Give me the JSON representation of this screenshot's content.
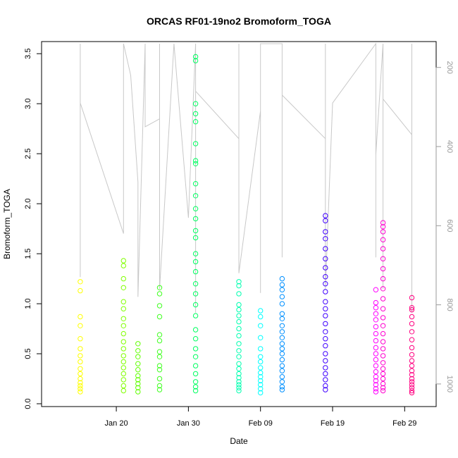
{
  "chart_data": {
    "type": "scatter",
    "title": "ORCAS RF01-19no2 Bromoform_TOGA",
    "xlabel": "Date",
    "ylabel": "Bromoform_TOGA",
    "x_ticks": [
      "Jan 20",
      "Jan 30",
      "Feb 09",
      "Feb 19",
      "Feb 29"
    ],
    "y_ticks": [
      "0.0",
      "0.5",
      "1.0",
      "1.5",
      "2.0",
      "2.5",
      "3.0",
      "3.5"
    ],
    "y2_ticks": [
      "200",
      "400",
      "600",
      "800",
      "1000"
    ],
    "xlim": [
      "2016-01-11",
      "2016-03-03"
    ],
    "ylim": [
      0,
      3.6
    ],
    "y2lim": [
      1050,
      140
    ],
    "y2_reversed": true,
    "secondary_series": {
      "name": "",
      "color": "#c8c8c8",
      "points": [
        [
          "2016-01-15",
          730
        ],
        [
          "2016-01-15",
          140
        ],
        [
          "2016-01-15",
          290
        ],
        [
          "2016-01-21",
          620
        ],
        [
          "2016-01-21",
          140
        ],
        [
          "2016-01-22",
          220
        ],
        [
          "2016-01-23",
          490
        ],
        [
          "2016-01-23",
          780
        ],
        [
          "2016-01-24",
          140
        ],
        [
          "2016-01-24",
          350
        ],
        [
          "2016-01-26",
          330
        ],
        [
          "2016-01-26",
          140
        ],
        [
          "2016-01-26",
          760
        ],
        [
          "2016-01-28",
          140
        ],
        [
          "2016-01-30",
          580
        ],
        [
          "2016-01-31",
          140
        ],
        [
          "2016-01-31",
          820
        ],
        [
          "2016-01-31",
          260
        ],
        [
          "2016-02-06",
          380
        ],
        [
          "2016-02-06",
          140
        ],
        [
          "2016-02-06",
          720
        ],
        [
          "2016-02-09",
          310
        ],
        [
          "2016-02-09",
          770
        ],
        [
          "2016-02-09",
          140
        ],
        [
          "2016-02-12",
          140
        ],
        [
          "2016-02-12",
          680
        ],
        [
          "2016-02-12",
          270
        ],
        [
          "2016-02-18",
          380
        ],
        [
          "2016-02-18",
          140
        ],
        [
          "2016-02-18",
          760
        ],
        [
          "2016-02-19",
          290
        ],
        [
          "2016-02-25",
          140
        ],
        [
          "2016-02-25",
          680
        ],
        [
          "2016-02-25",
          420
        ],
        [
          "2016-02-26",
          140
        ],
        [
          "2016-02-26",
          760
        ],
        [
          "2016-02-26",
          280
        ],
        [
          "2016-03-01",
          370
        ],
        [
          "2016-03-01",
          140
        ],
        [
          "2016-03-01",
          820
        ]
      ]
    },
    "series": [
      {
        "color": "#ffff00",
        "x": [
          "2016-01-15",
          "2016-01-15",
          "2016-01-15",
          "2016-01-15",
          "2016-01-15",
          "2016-01-15",
          "2016-01-15",
          "2016-01-15",
          "2016-01-15",
          "2016-01-15",
          "2016-01-15",
          "2016-01-15",
          "2016-01-15",
          "2016-01-15",
          "2016-01-15"
        ],
        "y": [
          1.22,
          1.13,
          0.87,
          0.78,
          0.65,
          0.55,
          0.48,
          0.42,
          0.35,
          0.3,
          0.25,
          0.21,
          0.18,
          0.15,
          0.12
        ]
      },
      {
        "color": "#80ff00",
        "x": [
          "2016-01-21",
          "2016-01-21",
          "2016-01-21",
          "2016-01-21",
          "2016-01-21",
          "2016-01-21",
          "2016-01-21",
          "2016-01-21",
          "2016-01-21",
          "2016-01-21",
          "2016-01-21",
          "2016-01-21",
          "2016-01-21",
          "2016-01-21",
          "2016-01-21",
          "2016-01-21",
          "2016-01-21",
          "2016-01-21"
        ],
        "y": [
          1.43,
          1.38,
          1.25,
          1.16,
          1.02,
          0.95,
          0.85,
          0.78,
          0.7,
          0.62,
          0.55,
          0.48,
          0.42,
          0.36,
          0.3,
          0.24,
          0.18,
          0.13
        ]
      },
      {
        "color": "#60ff00",
        "x": [
          "2016-01-23",
          "2016-01-23",
          "2016-01-23",
          "2016-01-23",
          "2016-01-23",
          "2016-01-23",
          "2016-01-23",
          "2016-01-23",
          "2016-01-23",
          "2016-01-23"
        ],
        "y": [
          0.6,
          0.53,
          0.47,
          0.4,
          0.34,
          0.28,
          0.24,
          0.2,
          0.16,
          0.12
        ]
      },
      {
        "color": "#40ff20",
        "x": [
          "2016-01-26",
          "2016-01-26",
          "2016-01-26",
          "2016-01-26",
          "2016-01-26",
          "2016-01-26",
          "2016-01-26",
          "2016-01-26",
          "2016-01-26",
          "2016-01-26",
          "2016-01-26",
          "2016-01-26",
          "2016-01-26"
        ],
        "y": [
          1.16,
          1.1,
          0.98,
          0.87,
          0.69,
          0.63,
          0.52,
          0.47,
          0.38,
          0.34,
          0.25,
          0.18,
          0.14
        ]
      },
      {
        "color": "#00ff60",
        "x": [
          "2016-01-31",
          "2016-01-31",
          "2016-01-31",
          "2016-01-31",
          "2016-01-31",
          "2016-01-31",
          "2016-01-31",
          "2016-01-31",
          "2016-01-31",
          "2016-01-31",
          "2016-01-31",
          "2016-01-31",
          "2016-01-31",
          "2016-01-31",
          "2016-01-31",
          "2016-01-31",
          "2016-01-31",
          "2016-01-31",
          "2016-01-31",
          "2016-01-31",
          "2016-01-31",
          "2016-01-31",
          "2016-01-31",
          "2016-01-31",
          "2016-01-31",
          "2016-01-31",
          "2016-01-31",
          "2016-01-31",
          "2016-01-31",
          "2016-01-31"
        ],
        "y": [
          3.47,
          3.43,
          3.0,
          2.9,
          2.82,
          2.6,
          2.43,
          2.4,
          2.2,
          2.08,
          1.95,
          1.85,
          1.73,
          1.66,
          1.5,
          1.42,
          1.32,
          1.2,
          1.1,
          0.99,
          0.88,
          0.74,
          0.65,
          0.55,
          0.47,
          0.38,
          0.3,
          0.22,
          0.17,
          0.13
        ]
      },
      {
        "color": "#00ffb0",
        "x": [
          "2016-02-06",
          "2016-02-06",
          "2016-02-06",
          "2016-02-06",
          "2016-02-06",
          "2016-02-06",
          "2016-02-06",
          "2016-02-06",
          "2016-02-06",
          "2016-02-06",
          "2016-02-06",
          "2016-02-06",
          "2016-02-06",
          "2016-02-06",
          "2016-02-06",
          "2016-02-06",
          "2016-02-06",
          "2016-02-06",
          "2016-02-06",
          "2016-02-06"
        ],
        "y": [
          1.22,
          1.18,
          1.1,
          0.99,
          0.94,
          0.88,
          0.82,
          0.75,
          0.68,
          0.6,
          0.53,
          0.47,
          0.4,
          0.35,
          0.3,
          0.26,
          0.22,
          0.19,
          0.16,
          0.13
        ]
      },
      {
        "color": "#00ffff",
        "x": [
          "2016-02-09",
          "2016-02-09",
          "2016-02-09",
          "2016-02-09",
          "2016-02-09",
          "2016-02-09",
          "2016-02-09",
          "2016-02-09",
          "2016-02-09",
          "2016-02-09",
          "2016-02-09",
          "2016-02-09",
          "2016-02-09",
          "2016-02-09"
        ],
        "y": [
          0.93,
          0.87,
          0.78,
          0.66,
          0.55,
          0.47,
          0.42,
          0.36,
          0.31,
          0.27,
          0.23,
          0.19,
          0.15,
          0.11
        ]
      },
      {
        "color": "#0090ff",
        "x": [
          "2016-02-12",
          "2016-02-12",
          "2016-02-12",
          "2016-02-12",
          "2016-02-12",
          "2016-02-12",
          "2016-02-12",
          "2016-02-12",
          "2016-02-12",
          "2016-02-12",
          "2016-02-12",
          "2016-02-12",
          "2016-02-12",
          "2016-02-12",
          "2016-02-12",
          "2016-02-12",
          "2016-02-12",
          "2016-02-12",
          "2016-02-12",
          "2016-02-12"
        ],
        "y": [
          1.25,
          1.19,
          1.14,
          1.07,
          1.0,
          0.9,
          0.85,
          0.78,
          0.72,
          0.66,
          0.6,
          0.55,
          0.5,
          0.44,
          0.38,
          0.33,
          0.27,
          0.22,
          0.17,
          0.14
        ]
      },
      {
        "color": "#4000ff",
        "x": [
          "2016-02-18",
          "2016-02-18",
          "2016-02-18",
          "2016-02-18",
          "2016-02-18",
          "2016-02-18",
          "2016-02-18",
          "2016-02-18",
          "2016-02-18",
          "2016-02-18",
          "2016-02-18",
          "2016-02-18",
          "2016-02-18",
          "2016-02-18",
          "2016-02-18",
          "2016-02-18",
          "2016-02-18",
          "2016-02-18",
          "2016-02-18",
          "2016-02-18",
          "2016-02-18",
          "2016-02-18",
          "2016-02-18",
          "2016-02-18"
        ],
        "y": [
          1.88,
          1.83,
          1.72,
          1.65,
          1.55,
          1.45,
          1.36,
          1.27,
          1.2,
          1.12,
          1.02,
          0.95,
          0.88,
          0.8,
          0.72,
          0.65,
          0.58,
          0.5,
          0.43,
          0.36,
          0.3,
          0.24,
          0.18,
          0.14
        ]
      },
      {
        "color": "#ff00ff",
        "x": [
          "2016-02-25",
          "2016-02-25",
          "2016-02-25",
          "2016-02-25",
          "2016-02-25",
          "2016-02-25",
          "2016-02-25",
          "2016-02-25",
          "2016-02-25",
          "2016-02-25",
          "2016-02-25",
          "2016-02-25",
          "2016-02-25",
          "2016-02-25",
          "2016-02-25",
          "2016-02-25",
          "2016-02-25",
          "2016-02-25"
        ],
        "y": [
          1.14,
          1.01,
          0.96,
          0.9,
          0.84,
          0.77,
          0.7,
          0.63,
          0.56,
          0.5,
          0.44,
          0.38,
          0.32,
          0.27,
          0.23,
          0.19,
          0.15,
          0.12
        ]
      },
      {
        "color": "#ff00d0",
        "x": [
          "2016-02-26",
          "2016-02-26",
          "2016-02-26",
          "2016-02-26",
          "2016-02-26",
          "2016-02-26",
          "2016-02-26",
          "2016-02-26",
          "2016-02-26",
          "2016-02-26",
          "2016-02-26",
          "2016-02-26",
          "2016-02-26",
          "2016-02-26",
          "2016-02-26",
          "2016-02-26",
          "2016-02-26",
          "2016-02-26",
          "2016-02-26",
          "2016-02-26",
          "2016-02-26",
          "2016-02-26",
          "2016-02-26",
          "2016-02-26"
        ],
        "y": [
          1.81,
          1.77,
          1.72,
          1.64,
          1.55,
          1.45,
          1.35,
          1.25,
          1.15,
          1.05,
          0.95,
          0.86,
          0.78,
          0.7,
          0.62,
          0.55,
          0.48,
          0.41,
          0.35,
          0.3,
          0.25,
          0.2,
          0.16,
          0.13
        ]
      },
      {
        "color": "#ff0080",
        "x": [
          "2016-03-01",
          "2016-03-01",
          "2016-03-01",
          "2016-03-01",
          "2016-03-01",
          "2016-03-01",
          "2016-03-01",
          "2016-03-01",
          "2016-03-01",
          "2016-03-01",
          "2016-03-01",
          "2016-03-01",
          "2016-03-01",
          "2016-03-01",
          "2016-03-01",
          "2016-03-01",
          "2016-03-01",
          "2016-03-01",
          "2016-03-01"
        ],
        "y": [
          1.06,
          0.96,
          0.94,
          0.87,
          0.8,
          0.72,
          0.64,
          0.56,
          0.49,
          0.43,
          0.38,
          0.33,
          0.29,
          0.25,
          0.22,
          0.19,
          0.16,
          0.13,
          0.11
        ]
      }
    ]
  }
}
